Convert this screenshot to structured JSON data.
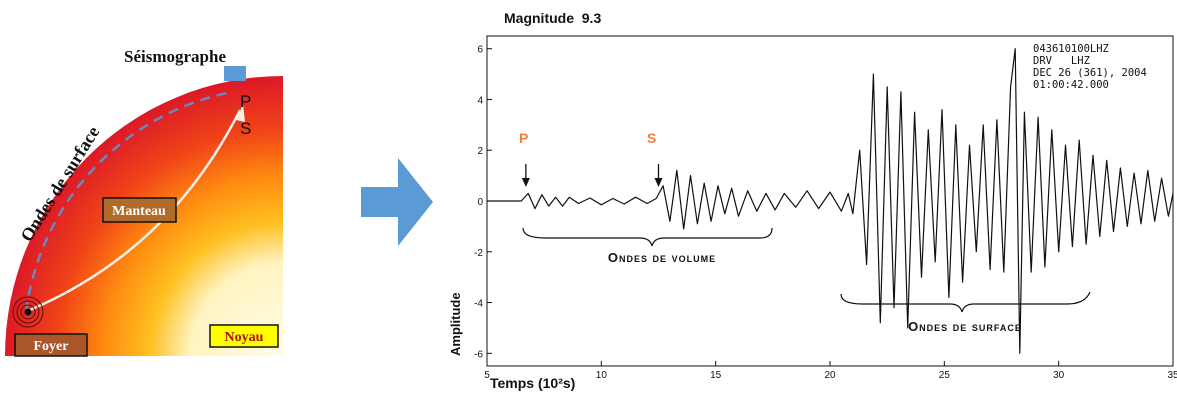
{
  "earth_diagram": {
    "seismograph_label": "Séismographe",
    "surface_waves_label": "Ondes de surface",
    "mantle_label": "Manteau",
    "core_label": "Noyau",
    "focus_label": "Foyer",
    "p_label": "P",
    "s_label": "S"
  },
  "arrow": {
    "icon": "right-arrow-icon",
    "color": "#5b9bd5"
  },
  "seismogram": {
    "title": "Magnitude  9.3",
    "station_lines": [
      "043610100LHZ",
      "DRV   LHZ",
      "DEC 26 (361), 2004",
      "01:00:42.000"
    ],
    "p_marker": "P",
    "s_marker": "S",
    "marker_color": "#f08040",
    "body_waves_label": "Ondes de volume",
    "surface_waves_label": "Ondes de surface",
    "xlabel": "Temps (10²s)",
    "ylabel": "Amplitude"
  },
  "chart_data": {
    "type": "line",
    "title": "Magnitude 9.3",
    "xlabel": "Temps (10²s)",
    "ylabel": "Amplitude",
    "xlim": [
      5,
      35
    ],
    "ylim": [
      -6.5,
      6.5
    ],
    "x_ticks": [
      5,
      10,
      15,
      20,
      25,
      30,
      35
    ],
    "y_ticks": [
      -6,
      -4,
      -2,
      0,
      2,
      4,
      6
    ],
    "p_arrival": 6.7,
    "s_arrival": 12.5,
    "series": [
      {
        "x": [
          5,
          6.5,
          6.8,
          7.1,
          7.4,
          7.7,
          8.0,
          8.3,
          8.6,
          9.0,
          9.5,
          10.0,
          10.5,
          11.0,
          11.5,
          12.0,
          12.4,
          12.7,
          13.0,
          13.3,
          13.6,
          13.9,
          14.2,
          14.5,
          14.8,
          15.1,
          15.4,
          15.7,
          16.0,
          16.4,
          16.8,
          17.2,
          17.6,
          18.0,
          18.5,
          19.0,
          19.5,
          20.0,
          20.5,
          20.8,
          21.0,
          21.3,
          21.6,
          21.9,
          22.2,
          22.5,
          22.8,
          23.1,
          23.4,
          23.7,
          24.0,
          24.3,
          24.6,
          24.9,
          25.2,
          25.5,
          25.8,
          26.1,
          26.4,
          26.7,
          27.0,
          27.3,
          27.6,
          27.9,
          28.1,
          28.3,
          28.5,
          28.8,
          29.1,
          29.4,
          29.7,
          30.0,
          30.3,
          30.6,
          30.9,
          31.2,
          31.5,
          31.8,
          32.1,
          32.4,
          32.7,
          33.0,
          33.3,
          33.6,
          33.9,
          34.2,
          34.5,
          34.8,
          35.0
        ],
        "y": [
          0,
          0,
          0.3,
          -0.3,
          0.25,
          -0.2,
          0.15,
          -0.2,
          0.15,
          -0.1,
          0.12,
          -0.15,
          0.1,
          -0.12,
          0.15,
          -0.1,
          0.1,
          0.6,
          -0.8,
          1.2,
          -1.1,
          1.0,
          -0.9,
          0.7,
          -0.8,
          0.6,
          -0.5,
          0.5,
          -0.6,
          0.4,
          -0.4,
          0.3,
          -0.35,
          0.3,
          -0.25,
          0.4,
          -0.3,
          0.35,
          -0.4,
          0.3,
          -0.5,
          2.0,
          -2.5,
          5.0,
          -4.8,
          4.5,
          -4.2,
          4.3,
          -5.0,
          3.5,
          -3.0,
          2.8,
          -2.4,
          3.6,
          -3.8,
          3.0,
          -3.2,
          2.2,
          -2.0,
          3.0,
          -2.7,
          3.2,
          -2.8,
          4.5,
          6.0,
          -6.0,
          3.5,
          -2.8,
          3.3,
          -2.6,
          2.8,
          -2.0,
          2.2,
          -1.8,
          2.4,
          -1.7,
          1.8,
          -1.4,
          1.6,
          -1.2,
          1.3,
          -1.0,
          1.1,
          -0.9,
          1.2,
          -0.8,
          0.9,
          -0.6,
          0.3
        ]
      }
    ]
  }
}
